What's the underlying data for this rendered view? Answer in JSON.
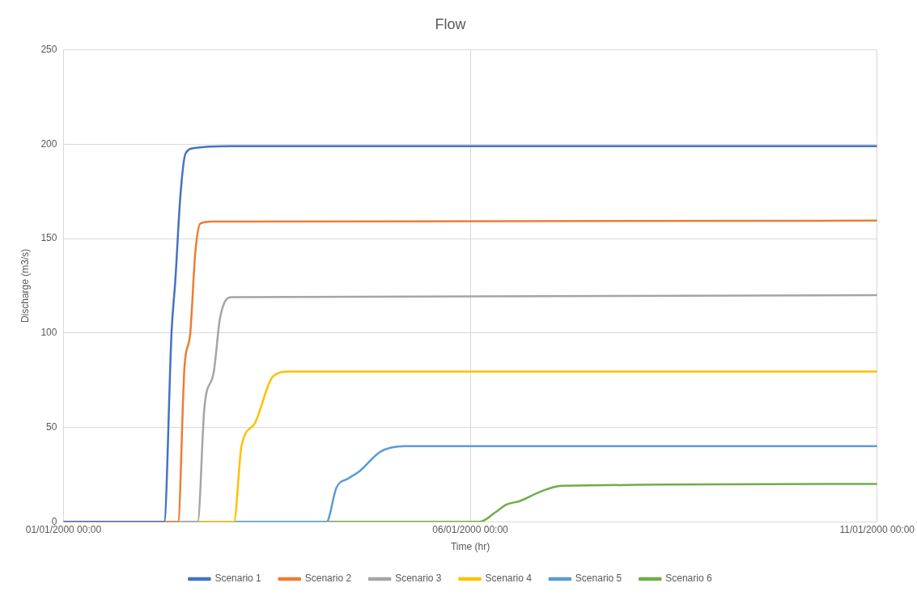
{
  "chart_data": {
    "type": "line",
    "title": "Flow",
    "xlabel": "Time (hr)",
    "ylabel": "Discharge (m3/s)",
    "xlim": [
      "2000-01-01T00:00",
      "2000-01-11T00:00"
    ],
    "xticks": [
      {
        "value": "2000-01-01T00:00",
        "label": "01/01/2000 00:00"
      },
      {
        "value": "2000-01-06T00:00",
        "label": "06/01/2000 00:00"
      },
      {
        "value": "2000-01-11T00:00",
        "label": "11/01/2000 00:00"
      }
    ],
    "ylim": [
      0,
      250
    ],
    "yticks": [
      0,
      50,
      100,
      150,
      200,
      250
    ],
    "grid": true,
    "legend": "bottom",
    "marker": "none",
    "line_style": "solid",
    "series": [
      {
        "name": "Scenario 1",
        "color": "#4472c4",
        "x": [
          "2000-01-01T00:00",
          "2000-01-02T05:42",
          "2000-01-02T07:54",
          "2000-01-02T09:00",
          "2000-01-02T10:30",
          "2000-01-02T12:00",
          "2000-01-02T14:42",
          "2000-01-03T01:36",
          "2000-01-11T00:00"
        ],
        "values": [
          0,
          0,
          101,
          128,
          173,
          195,
          198,
          199,
          199
        ]
      },
      {
        "name": "Scenario 2",
        "color": "#ed7d31",
        "x": [
          "2000-01-01T00:00",
          "2000-01-02T09:48",
          "2000-01-02T11:42",
          "2000-01-02T13:24",
          "2000-01-02T14:54",
          "2000-01-02T16:24",
          "2000-01-02T19:30",
          "2000-01-11T00:00"
        ],
        "values": [
          0,
          0,
          82,
          100,
          143,
          158,
          159,
          159.5
        ]
      },
      {
        "name": "Scenario 3",
        "color": "#a5a5a5",
        "x": [
          "2000-01-01T00:00",
          "2000-01-02T15:36",
          "2000-01-02T17:36",
          "2000-01-02T20:18",
          "2000-01-02T22:12",
          "2000-01-03T01:36",
          "2000-01-11T00:00"
        ],
        "values": [
          0,
          0,
          61,
          79,
          108,
          119,
          120
        ]
      },
      {
        "name": "Scenario 4",
        "color": "#ffc000",
        "x": [
          "2000-01-01T00:00",
          "2000-01-03T02:18",
          "2000-01-03T04:30",
          "2000-01-03T08:24",
          "2000-01-03T13:48",
          "2000-01-03T18:36",
          "2000-01-11T00:00"
        ],
        "values": [
          0,
          0,
          40,
          52,
          77,
          79.5,
          79.5
        ]
      },
      {
        "name": "Scenario 5",
        "color": "#5b9bd5",
        "x": [
          "2000-01-01T00:00",
          "2000-01-04T05:36",
          "2000-01-04T08:30",
          "2000-01-04T12:06",
          "2000-01-04T15:30",
          "2000-01-04T21:24",
          "2000-01-05T04:42",
          "2000-01-11T00:00"
        ],
        "values": [
          0,
          0,
          18,
          23,
          27,
          37,
          40,
          40
        ]
      },
      {
        "name": "Scenario 6",
        "color": "#70ad47",
        "x": [
          "2000-01-01T00:00",
          "2000-01-06T02:48",
          "2000-01-06T07:24",
          "2000-01-06T10:36",
          "2000-01-06T14:42",
          "2000-01-06T20:48",
          "2000-01-07T02:54",
          "2000-01-11T00:00"
        ],
        "values": [
          0,
          0,
          5,
          9,
          11,
          16,
          19,
          20
        ]
      }
    ]
  }
}
